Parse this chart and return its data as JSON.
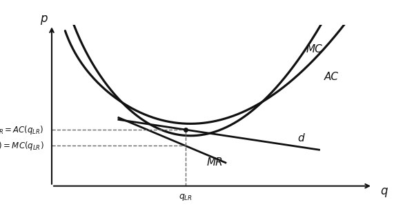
{
  "figsize": [
    6.0,
    3.03
  ],
  "dpi": 100,
  "bg_color": "#ffffff",
  "curve_color": "#111111",
  "dashed_color": "#666666",
  "xlabel": "q",
  "ylabel": "p",
  "label_MC": "MC",
  "label_AC": "AC",
  "label_d": "d",
  "label_MR": "MR",
  "label_pLR": "$p_{LR} = AC(q_{LR})$",
  "label_mrLR": "$MR(q_{LR}) = MC(q_{LR})$",
  "label_qLR": "$q_{LR}$",
  "q_LR": 5.0,
  "p_LR": 3.5,
  "mr_level": 2.5,
  "xmin": 0.0,
  "xmax": 12.0,
  "ymin": 0.0,
  "ymax": 10.0
}
